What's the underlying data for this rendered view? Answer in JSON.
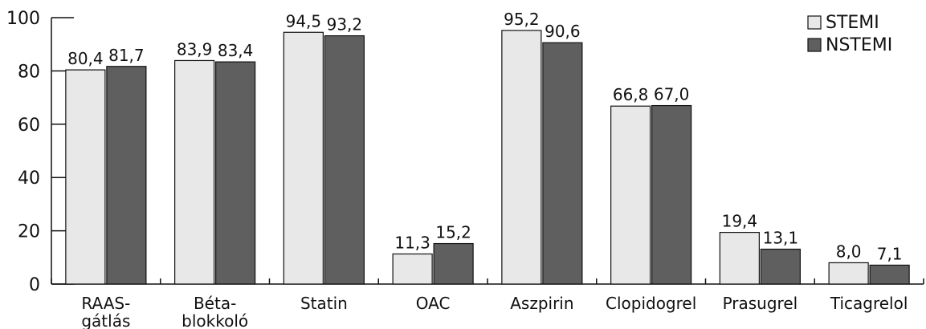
{
  "chart_data": {
    "type": "bar",
    "categories": [
      [
        "RAAS-",
        "gátlás"
      ],
      [
        "Béta-",
        "blokkoló"
      ],
      [
        "Statin"
      ],
      [
        "OAC"
      ],
      [
        "Aszpirin"
      ],
      [
        "Clopidogrel"
      ],
      [
        "Prasugrel"
      ],
      [
        "Ticagrelol"
      ]
    ],
    "series": [
      {
        "name": "STEMI",
        "color": "#e8e8e8",
        "values": [
          80.4,
          83.9,
          94.5,
          11.3,
          95.2,
          66.8,
          19.4,
          8.0
        ],
        "labels": [
          "80,4",
          "83,9",
          "94,5",
          "11,3",
          "95,2",
          "66,8",
          "19,4",
          "8,0"
        ]
      },
      {
        "name": "NSTEMI",
        "color": "#5f5f5f",
        "values": [
          81.7,
          83.4,
          93.2,
          15.2,
          90.6,
          67.0,
          13.1,
          7.1
        ],
        "labels": [
          "81,7",
          "83,4",
          "93,2",
          "15,2",
          "90,6",
          "67,0",
          "13,1",
          "7,1"
        ]
      }
    ],
    "y_ticks": [
      0,
      20,
      40,
      60,
      80,
      100
    ],
    "ylim": [
      0,
      100
    ],
    "legend_position": "top-right",
    "grid": false
  }
}
